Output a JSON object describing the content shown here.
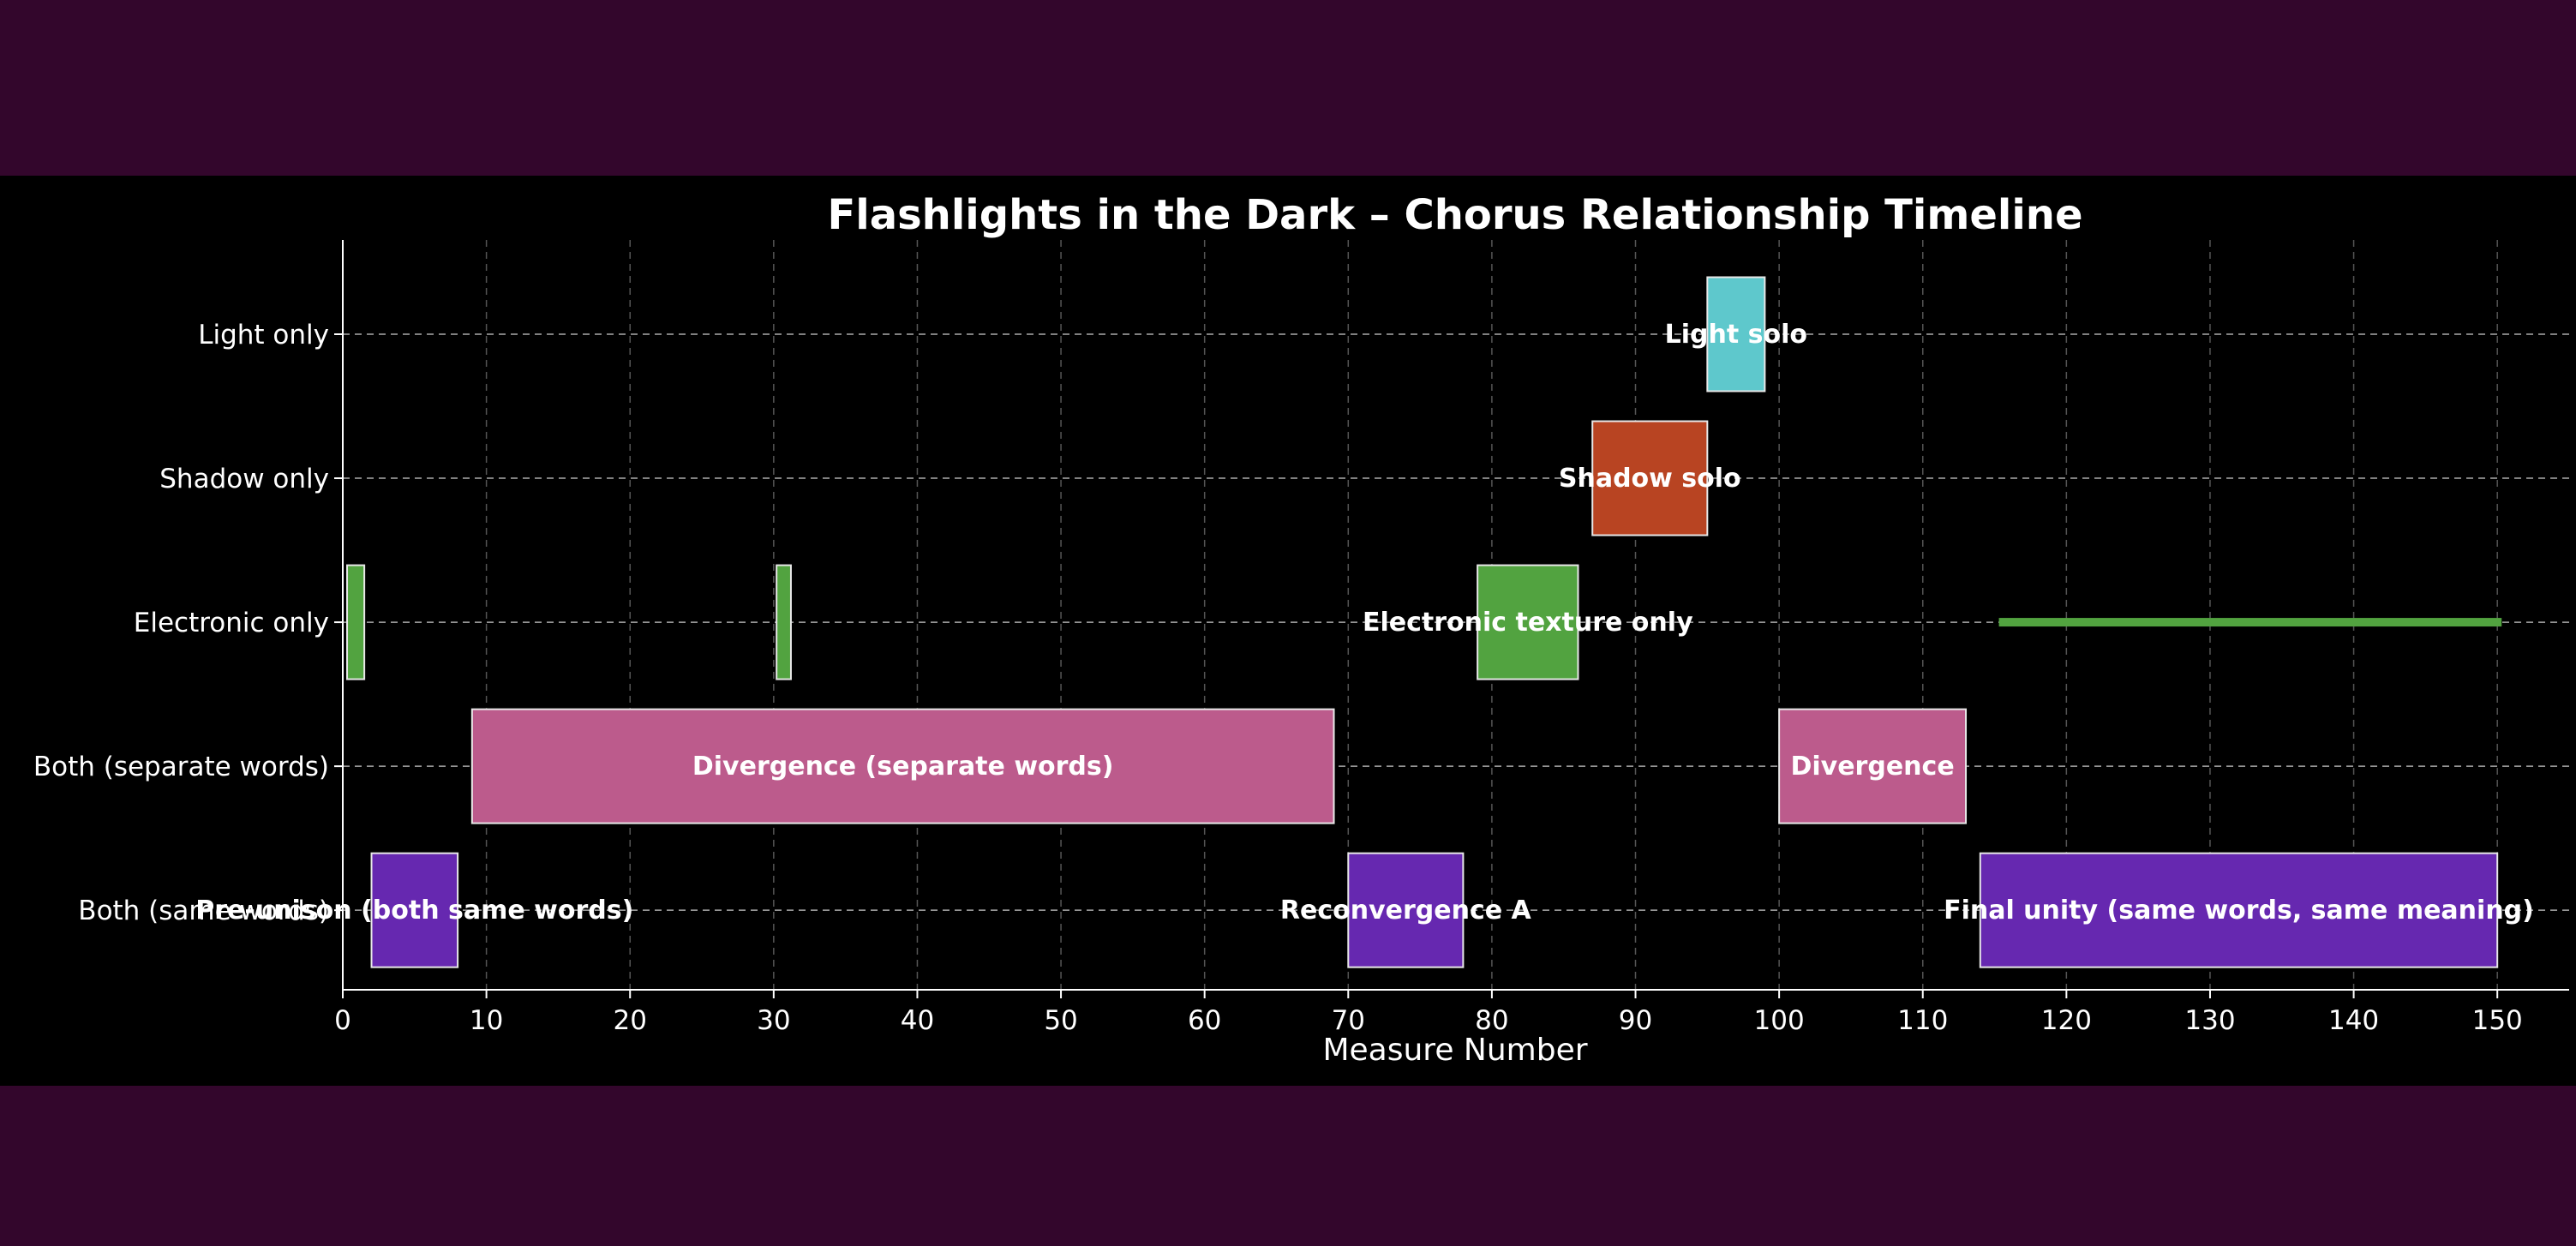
{
  "chart_data": {
    "type": "timeline",
    "title": "Flashlights in the Dark – Chorus Relationship Timeline",
    "xlabel": "Measure Number",
    "ylabel": "",
    "xlim": [
      0,
      155
    ],
    "xticks": [
      0,
      10,
      20,
      30,
      40,
      50,
      60,
      70,
      80,
      90,
      100,
      110,
      120,
      130,
      140,
      150
    ],
    "categories": [
      "Light only",
      "Shadow only",
      "Electronic only",
      "Both (separate words)",
      "Both (same words)"
    ],
    "grid": true,
    "colors": {
      "Light only": "#5ec8cc",
      "Shadow only": "#b84422",
      "Electronic only": "#52a340",
      "Both (separate words)": "#bc5b8c",
      "Both (same words)": "#6628b0"
    },
    "segments": [
      {
        "category": "Light only",
        "start": 95,
        "end": 99,
        "label": "Light solo"
      },
      {
        "category": "Shadow only",
        "start": 87,
        "end": 95,
        "label": "Shadow solo"
      },
      {
        "category": "Electronic only",
        "start": 0.3,
        "end": 1.5,
        "label": ""
      },
      {
        "category": "Electronic only",
        "start": 30.2,
        "end": 31.2,
        "label": ""
      },
      {
        "category": "Electronic only",
        "start": 79,
        "end": 86,
        "label": "Electronic texture only"
      },
      {
        "category": "Electronic only",
        "start": 115.3,
        "end": 150.3,
        "label": "",
        "thin": true
      },
      {
        "category": "Both (separate words)",
        "start": 9,
        "end": 69,
        "label": "Divergence (separate words)"
      },
      {
        "category": "Both (separate words)",
        "start": 100,
        "end": 113,
        "label": "Divergence"
      },
      {
        "category": "Both (same words)",
        "start": 2,
        "end": 8,
        "label": "Pre-unison (both same words)"
      },
      {
        "category": "Both (same words)",
        "start": 70,
        "end": 78,
        "label": "Reconvergence A"
      },
      {
        "category": "Both (same words)",
        "start": 114,
        "end": 150,
        "label": "Final unity (same words, same meaning)"
      }
    ]
  }
}
